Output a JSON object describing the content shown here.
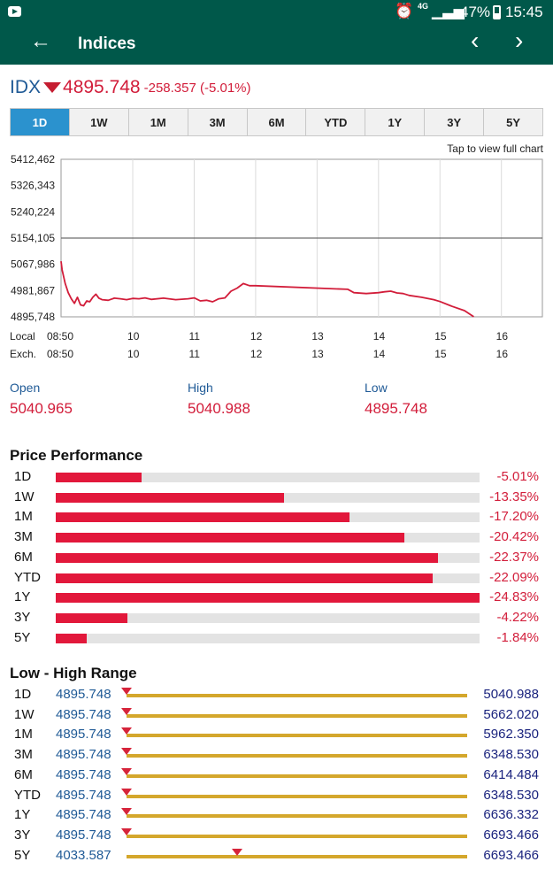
{
  "status_bar": {
    "network": "4G",
    "battery": "47%",
    "time": "15:45"
  },
  "app_bar": {
    "title": "Indices",
    "back_icon": "arrow-left-icon",
    "prev_icon": "chevron-left-icon",
    "next_icon": "chevron-right-icon"
  },
  "quote": {
    "symbol": "IDX",
    "price": "4895.748",
    "change": "-258.357 (-5.01%)",
    "direction": "down"
  },
  "tabs": [
    {
      "label": "1D",
      "active": true
    },
    {
      "label": "1W",
      "active": false
    },
    {
      "label": "1M",
      "active": false
    },
    {
      "label": "3M",
      "active": false
    },
    {
      "label": "6M",
      "active": false
    },
    {
      "label": "YTD",
      "active": false
    },
    {
      "label": "1Y",
      "active": false
    },
    {
      "label": "3Y",
      "active": false
    },
    {
      "label": "5Y",
      "active": false
    }
  ],
  "chart_hint": "Tap to view full chart",
  "chart_data": {
    "type": "line",
    "y_ticks": [
      "5412,462",
      "5326,343",
      "5240,224",
      "5154,105",
      "5067,986",
      "4981,867",
      "4895,748"
    ],
    "ylim": [
      4895.748,
      5412.462
    ],
    "reference_line": 5154.105,
    "x_rows": [
      {
        "label": "Local",
        "ticks": [
          "08:50",
          "10",
          "11",
          "12",
          "13",
          "14",
          "15",
          "16"
        ]
      },
      {
        "label": "Exch.",
        "ticks": [
          "08:50",
          "10",
          "11",
          "12",
          "13",
          "14",
          "15",
          "16"
        ]
      }
    ],
    "xlim": [
      8.833,
      16.667
    ],
    "series": [
      {
        "color": "#d21d3a",
        "x": [
          8.833,
          8.85,
          8.9,
          8.95,
          9.0,
          9.05,
          9.1,
          9.15,
          9.2,
          9.25,
          9.3,
          9.35,
          9.4,
          9.45,
          9.5,
          9.6,
          9.7,
          9.8,
          9.9,
          10.0,
          10.1,
          10.2,
          10.3,
          10.5,
          10.7,
          10.9,
          11.0,
          11.1,
          11.2,
          11.3,
          11.4,
          11.5,
          11.6,
          11.7,
          11.8,
          11.9,
          12.0,
          13.5,
          13.6,
          13.8,
          14.0,
          14.1,
          14.2,
          14.3,
          14.4,
          14.5,
          14.7,
          14.9,
          15.0,
          15.2,
          15.4,
          15.55
        ],
        "y": [
          5078,
          5050,
          5005,
          4975,
          4955,
          4940,
          4960,
          4935,
          4932,
          4948,
          4945,
          4960,
          4970,
          4957,
          4952,
          4950,
          4957,
          4955,
          4952,
          4956,
          4955,
          4958,
          4953,
          4957,
          4952,
          4955,
          4958,
          4948,
          4950,
          4945,
          4955,
          4958,
          4980,
          4990,
          5005,
          4998,
          4998,
          4986,
          4975,
          4972,
          4975,
          4978,
          4980,
          4974,
          4972,
          4966,
          4960,
          4952,
          4946,
          4930,
          4916,
          4896
        ]
      }
    ]
  },
  "stats": {
    "open_label": "Open",
    "open": "5040.965",
    "high_label": "High",
    "high": "5040.988",
    "low_label": "Low",
    "low": "4895.748"
  },
  "price_performance": {
    "title": "Price Performance",
    "rows": [
      {
        "period": "1D",
        "pct": "-5.01%",
        "value": 5.01
      },
      {
        "period": "1W",
        "pct": "-13.35%",
        "value": 13.35
      },
      {
        "period": "1M",
        "pct": "-17.20%",
        "value": 17.2
      },
      {
        "period": "3M",
        "pct": "-20.42%",
        "value": 20.42
      },
      {
        "period": "6M",
        "pct": "-22.37%",
        "value": 22.37
      },
      {
        "period": "YTD",
        "pct": "-22.09%",
        "value": 22.09
      },
      {
        "period": "1Y",
        "pct": "-24.83%",
        "value": 24.83
      },
      {
        "period": "3Y",
        "pct": "-4.22%",
        "value": 4.22
      },
      {
        "period": "5Y",
        "pct": "-1.84%",
        "value": 1.84
      }
    ]
  },
  "range": {
    "title": "Low - High Range",
    "current": 4895.748,
    "rows": [
      {
        "period": "1D",
        "low": "4895.748",
        "high": "5040.988"
      },
      {
        "period": "1W",
        "low": "4895.748",
        "high": "5662.020"
      },
      {
        "period": "1M",
        "low": "4895.748",
        "high": "5962.350"
      },
      {
        "period": "3M",
        "low": "4895.748",
        "high": "6348.530"
      },
      {
        "period": "6M",
        "low": "4895.748",
        "high": "6414.484"
      },
      {
        "period": "YTD",
        "low": "4895.748",
        "high": "6348.530"
      },
      {
        "period": "1Y",
        "low": "4895.748",
        "high": "6636.332"
      },
      {
        "period": "3Y",
        "low": "4895.748",
        "high": "6693.466"
      },
      {
        "period": "5Y",
        "low": "4033.587",
        "high": "6693.466"
      }
    ]
  }
}
